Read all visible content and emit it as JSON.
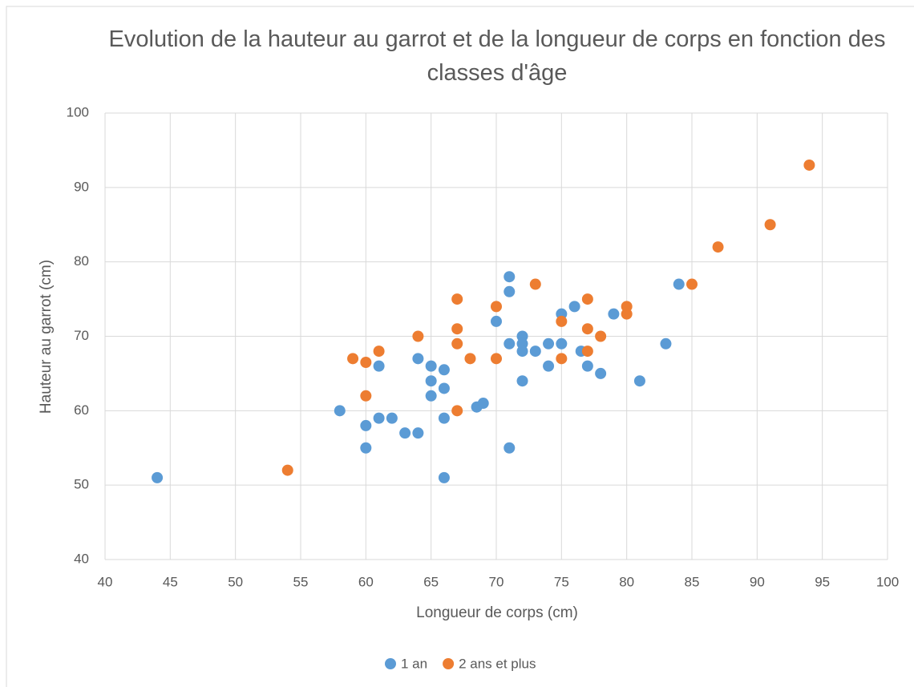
{
  "chart_data": {
    "type": "scatter",
    "title": "Evolution de la hauteur au garrot et de la longueur de corps en fonction des classes d'âge",
    "xlabel": "Longueur de corps (cm)",
    "ylabel": "Hauteur au garrot (cm)",
    "xlim": [
      40,
      100
    ],
    "xticks": [
      40,
      45,
      50,
      55,
      60,
      65,
      70,
      75,
      80,
      85,
      90,
      95,
      100
    ],
    "ylim": [
      40,
      100
    ],
    "yticks": [
      40,
      50,
      60,
      70,
      80,
      90,
      100
    ],
    "grid": true,
    "legend": "bottom",
    "series": [
      {
        "name": "1 an",
        "color": "#5b9bd5",
        "x": [
          44,
          58,
          60,
          60,
          61,
          61,
          62,
          63,
          64,
          64,
          65,
          65,
          65,
          66,
          66,
          66,
          66,
          68.5,
          69,
          70,
          71,
          71,
          71,
          71,
          72,
          72,
          72,
          72,
          73,
          74,
          74,
          75,
          75,
          76,
          76.5,
          77,
          78,
          79,
          81,
          83,
          84
        ],
        "values": [
          51,
          60,
          58,
          55,
          66,
          59,
          59,
          57,
          57,
          67,
          66,
          64,
          62,
          65.5,
          63,
          59,
          51,
          60.5,
          61,
          72,
          78,
          76,
          69,
          55,
          70,
          69,
          68,
          64,
          68,
          69,
          66,
          73,
          69,
          74,
          68,
          66,
          65,
          73,
          64,
          69,
          77
        ]
      },
      {
        "name": "2 ans et plus",
        "color": "#ed7d31",
        "x": [
          54,
          59,
          60,
          60,
          61,
          64,
          67,
          67,
          67,
          67,
          68,
          70,
          70,
          73,
          75,
          75,
          77,
          77,
          77,
          78,
          80,
          80,
          85,
          87,
          91,
          94
        ],
        "values": [
          52,
          67,
          66.5,
          62,
          68,
          70,
          75,
          71,
          69,
          60,
          67,
          74,
          67,
          77,
          72,
          67,
          75,
          71,
          68,
          70,
          74,
          73,
          77,
          82,
          85,
          93
        ]
      }
    ]
  }
}
